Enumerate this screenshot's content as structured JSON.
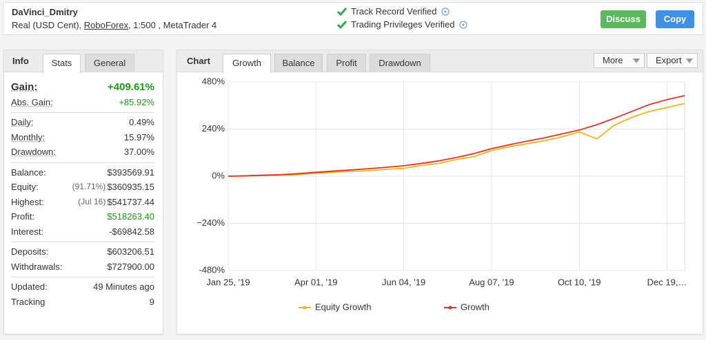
{
  "header": {
    "name": "DaVinci_Dmitry",
    "account_prefix": "Real (USD Cent),",
    "broker": "RoboForex",
    "account_suffix": ", 1:500 , MetaTrader 4",
    "verified": [
      "Track Record Verified",
      "Trading Privileges Verified"
    ],
    "buttons": [
      "Discuss",
      "Copy"
    ]
  },
  "info": {
    "tabs": [
      "Info",
      "Stats",
      "General"
    ],
    "groups": [
      [
        {
          "label": "Gain:",
          "value": "+409.61%",
          "color": "#1a9c1a"
        },
        {
          "label": "Abs. Gain:",
          "value": "+85.92%",
          "color": "#1a9c1a"
        }
      ],
      [
        {
          "label": "Daily:",
          "value": "0.49%"
        },
        {
          "label": "Monthly:",
          "value": "15.97%"
        },
        {
          "label": "Drawdown:",
          "value": "37.00%"
        }
      ],
      [
        {
          "label": "Balance:",
          "value": "$393569.91"
        },
        {
          "label": "Equity:",
          "note": "(91.71%)",
          "value": "$360935.15"
        },
        {
          "label": "Highest:",
          "note": "(Jul 16)",
          "value": "$541737.44"
        },
        {
          "label": "Profit:",
          "value": "$518263.40",
          "color": "#1a9c1a"
        },
        {
          "label": "Interest:",
          "value": "-$69842.58"
        }
      ],
      [
        {
          "label": "Deposits:",
          "value": "$603206.51"
        },
        {
          "label": "Withdrawals:",
          "value": "$727900.00"
        }
      ],
      [
        {
          "label": "Updated:",
          "value": "49 Minutes ago"
        },
        {
          "label": "Tracking",
          "value": "9"
        }
      ]
    ]
  },
  "chart_panel": {
    "title": "Chart",
    "tabs": [
      "Growth",
      "Balance",
      "Profit",
      "Drawdown"
    ],
    "menus": [
      "More",
      "Export"
    ]
  },
  "chart_data": {
    "type": "line",
    "categories": [
      "Jan 25, '19",
      null,
      null,
      null,
      null,
      "Apr 01, '19",
      null,
      null,
      null,
      null,
      "Jun 04, '19",
      null,
      null,
      null,
      null,
      "Aug 07, '19",
      null,
      null,
      null,
      null,
      "Oct 10, '19",
      null,
      null,
      null,
      null,
      "Dec 19,…",
      null
    ],
    "series": [
      {
        "name": "Equity Growth",
        "color": "#f2b21b",
        "values": [
          0,
          1,
          3,
          5,
          8,
          15,
          20,
          25,
          28,
          35,
          40,
          55,
          65,
          85,
          100,
          130,
          150,
          165,
          180,
          200,
          225,
          190,
          260,
          300,
          330,
          350,
          370
        ]
      },
      {
        "name": "Growth",
        "color": "#e0302a",
        "values": [
          0,
          2,
          5,
          8,
          13,
          20,
          26,
          32,
          38,
          45,
          53,
          65,
          78,
          95,
          115,
          140,
          160,
          178,
          195,
          215,
          235,
          262,
          295,
          330,
          365,
          390,
          410
        ]
      }
    ],
    "ylim": [
      -480,
      480
    ],
    "yticks": [
      {
        "value": -480,
        "label": "-480%"
      },
      {
        "value": -240,
        "label": "−240%"
      },
      {
        "value": 0,
        "label": "0%"
      },
      {
        "value": 240,
        "label": "240%"
      },
      {
        "value": 480,
        "label": "480%"
      }
    ],
    "grid": true
  }
}
